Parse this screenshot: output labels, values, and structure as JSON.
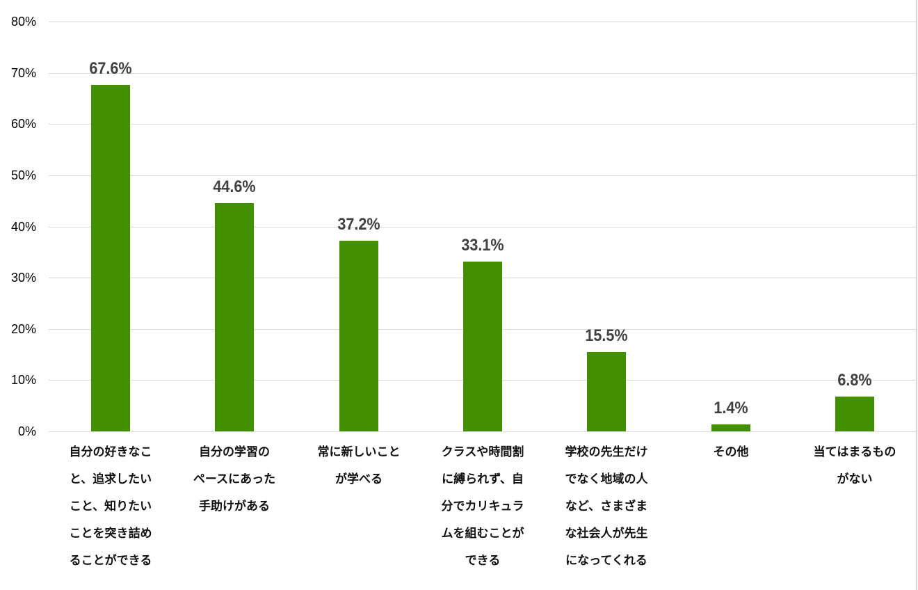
{
  "chart_data": {
    "type": "bar",
    "title": "",
    "xlabel": "",
    "ylabel": "",
    "ylim": [
      0,
      80
    ],
    "yticks": [
      "0%",
      "10%",
      "20%",
      "30%",
      "40%",
      "50%",
      "60%",
      "70%",
      "80%"
    ],
    "grid": true,
    "legend": null,
    "bar_color": "#428F00",
    "categories": [
      "自分の好きなこと、追求したいこと、知りたいことを突き詰めることができる",
      "自分の学習のペースにあった手助けがある",
      "常に新しいことが学べる",
      "クラスや時間割に縛られず、自分でカリキュラムを組むことができる",
      "学校の先生だけでなく地域の人など、さまざまな社会人が先生になってくれる",
      "その他",
      "当てはまるものがない"
    ],
    "category_lines": [
      [
        "自分の好きなこ",
        "と、追求したい",
        "こと、知りたい",
        "ことを突き詰め",
        "ることができる"
      ],
      [
        "自分の学習の",
        "ペースにあった",
        "手助けがある"
      ],
      [
        "常に新しいこと",
        "が学べる"
      ],
      [
        "クラスや時間割",
        "に縛られず、自",
        "分でカリキュラ",
        "ムを組むことが",
        "できる"
      ],
      [
        "学校の先生だけ",
        "でなく地域の人",
        "など、さまざま",
        "な社会人が先生",
        "になってくれる"
      ],
      [
        "その他"
      ],
      [
        "当てはまるもの",
        "がない"
      ]
    ],
    "values": [
      67.6,
      44.6,
      37.2,
      33.1,
      15.5,
      1.4,
      6.8
    ],
    "value_labels": [
      "67.6%",
      "44.6%",
      "37.2%",
      "33.1%",
      "15.5%",
      "1.4%",
      "6.8%"
    ]
  }
}
